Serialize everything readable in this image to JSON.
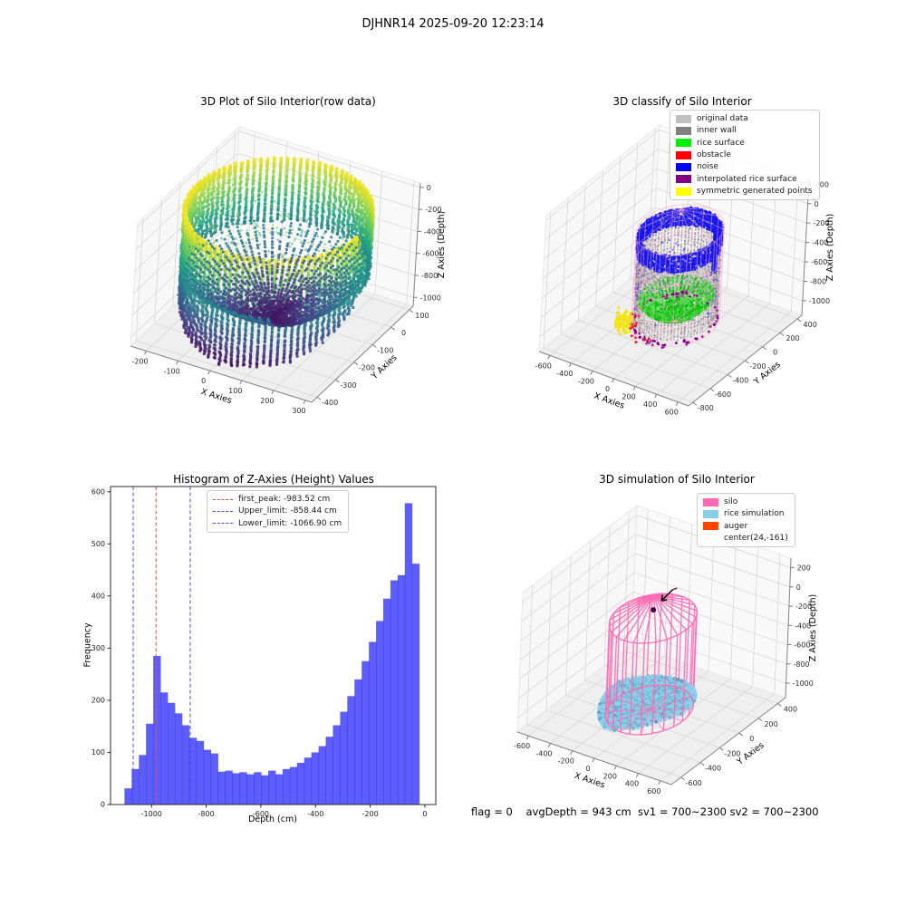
{
  "figure": {
    "title": "DJHNR14 2025-09-20 12:23:14",
    "status_line": "flag = 0    avgDepth = 943 cm  sv1 = 700~2300 sv2 = 700~2300"
  },
  "chart_data": [
    {
      "type": "scatter",
      "projection": "3d",
      "title": "3D Plot of Silo Interior(row data)",
      "xlabel": "X Axies",
      "ylabel": "Y Axies",
      "zlabel": "Z Axies (Depth)",
      "xlim": [
        -250,
        320
      ],
      "ylim": [
        -430,
        120
      ],
      "zlim": [
        -1080,
        40
      ],
      "xticks": [
        -200,
        -100,
        0,
        100,
        200,
        300
      ],
      "yticks": [
        100,
        0,
        -100,
        -200,
        -300,
        -400
      ],
      "zticks": [
        0,
        -200,
        -400,
        -600,
        -800,
        -1000
      ],
      "colormap": "viridis",
      "colormap_zrange": [
        -1060,
        0
      ],
      "geometry": {
        "shape": "cylindrical lidar scan of silo interior",
        "center_x": 35,
        "center_y": -155,
        "radius": 255,
        "rim_z": -15,
        "back_wall_bottom_z": -560,
        "front_wall_bottom_z": -1000,
        "surface_center_z": -980,
        "surface_edge_z": -545,
        "wall_columns": 88,
        "surface_spokes": 60
      }
    },
    {
      "type": "scatter",
      "projection": "3d",
      "title": "3D classify of Silo Interior",
      "xlabel": "X Axies",
      "ylabel": "Y Axies",
      "zlabel": "Z Axies (Depth)",
      "xlim": [
        -700,
        700
      ],
      "ylim": [
        -850,
        450
      ],
      "zlim": [
        -1150,
        250
      ],
      "xticks": [
        -600,
        -400,
        -200,
        0,
        200,
        400,
        600
      ],
      "yticks": [
        400,
        200,
        0,
        -200,
        -400,
        -600,
        -800
      ],
      "zticks": [
        200,
        0,
        -200,
        -400,
        -600,
        -800,
        -1000
      ],
      "legend": [
        {
          "label": "original data",
          "color": "#c0c0c0"
        },
        {
          "label": "inner wall",
          "color": "#808080"
        },
        {
          "label": "rice surface",
          "color": "#00ee00"
        },
        {
          "label": "obstacle",
          "color": "#ff0000"
        },
        {
          "label": "noise",
          "color": "#0000ff"
        },
        {
          "label": "interpolated rice surface",
          "color": "#800080"
        },
        {
          "label": "symmetric generated points",
          "color": "#ffff00"
        }
      ],
      "geometry": {
        "center_x": 0,
        "center_y": -150,
        "radius": 300,
        "wall_top_z": -140,
        "wall_bottom_z": -1010,
        "silo_outline_radius": 322,
        "silo_outline_color": "#ffaacd",
        "cone_apex_z": 90,
        "noise_band_z": [
          -140,
          -320
        ],
        "rice_surface_z": [
          -1005,
          -775
        ],
        "symmetric_cluster_angle_deg": 215
      }
    },
    {
      "type": "histogram",
      "title": "Histogram of Z-Axies (Height) Values",
      "xlabel": "Depth (cm)",
      "ylabel": "Frequency",
      "xlim": [
        -1150,
        40
      ],
      "ylim": [
        0,
        610
      ],
      "xticks": [
        -1000,
        -800,
        -600,
        -400,
        -200,
        0
      ],
      "yticks": [
        0,
        100,
        200,
        300,
        400,
        500,
        600
      ],
      "bar_color": "rgba(30,30,250,0.72)",
      "bin_start": -1099,
      "bin_width": 26.3,
      "values": [
        31,
        68,
        95,
        155,
        285,
        215,
        195,
        175,
        152,
        128,
        122,
        105,
        98,
        63,
        65,
        60,
        62,
        58,
        62,
        56,
        65,
        58,
        68,
        72,
        80,
        90,
        100,
        112,
        130,
        152,
        178,
        208,
        240,
        275,
        312,
        352,
        395,
        430,
        440,
        578,
        462
      ],
      "lines": [
        {
          "label": "first_peak: -983.52 cm",
          "value": -983.52,
          "color": "#e24a4a"
        },
        {
          "label": "Upper_limit: -858.44 cm",
          "value": -858.44,
          "color": "#4a4ae2"
        },
        {
          "label": "Lower_limit: -1066.90 cm",
          "value": -1066.9,
          "color": "#4a4ae2"
        }
      ]
    },
    {
      "type": "wireframe",
      "projection": "3d",
      "title": "3D simulation of Silo Interior",
      "xlabel": "X Axies",
      "ylabel": "Y Axies",
      "zlabel": "Z Axies (Depth)",
      "xlim": [
        -700,
        700
      ],
      "ylim": [
        -700,
        480
      ],
      "zlim": [
        -1150,
        300
      ],
      "xticks": [
        -600,
        -400,
        -200,
        0,
        200,
        400,
        600
      ],
      "yticks": [
        400,
        200,
        0,
        -200,
        -400,
        -600
      ],
      "zticks": [
        200,
        0,
        -200,
        -400,
        -600,
        -800,
        -1000
      ],
      "legend": [
        {
          "label": "silo",
          "color": "#ff69b4"
        },
        {
          "label": "rice simulation",
          "color": "#87ceeb"
        },
        {
          "label": "auger",
          "color": "#ff4500"
        },
        {
          "label": "center(24,-161)",
          "color": null
        }
      ],
      "geometry": {
        "center_x": 24,
        "center_y": -161,
        "radius": 300,
        "wall_top_z": -100,
        "wall_bottom_z": -1050,
        "cone_apex_z": 140,
        "rice_level_z": -890,
        "rice_radius": 315,
        "vertical_bars": 24
      }
    }
  ]
}
